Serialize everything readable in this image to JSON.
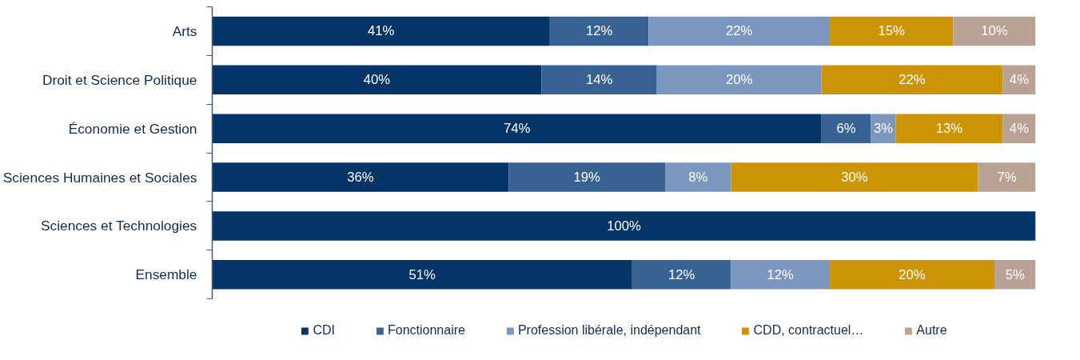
{
  "chart_data": {
    "type": "bar",
    "orientation": "horizontal",
    "stacked": true,
    "categories": [
      "Arts",
      "Droit et Science Politique",
      "Économie et Gestion",
      "Sciences Humaines et Sociales",
      "Sciences et Technologies",
      "Ensemble"
    ],
    "xlim": [
      0,
      100
    ],
    "tick_labels": "y",
    "grid": false,
    "legend": "bottom",
    "series": [
      {
        "name": "CDI",
        "color": "#043468",
        "values": [
          41,
          40,
          74,
          36,
          100,
          51
        ],
        "value_labels": [
          "41%",
          "40%",
          "74%",
          "36%",
          "100%",
          "51%"
        ]
      },
      {
        "name": "Fonctionnaire",
        "color": "#386294",
        "values": [
          12,
          14,
          6,
          19,
          null,
          12
        ],
        "value_labels": [
          "12%",
          "14%",
          "6%",
          "19%",
          null,
          "12%"
        ]
      },
      {
        "name": "Profession libérale, indépendant",
        "color": "#7b97c0",
        "values": [
          22,
          20,
          3,
          8,
          null,
          12
        ],
        "value_labels": [
          "22%",
          "20%",
          "3%",
          "8%",
          null,
          "12%"
        ]
      },
      {
        "name": "CDD, contractuel…",
        "color": "#cc9406",
        "values": [
          15,
          22,
          13,
          30,
          null,
          20
        ],
        "value_labels": [
          "15%",
          "22%",
          "13%",
          "30%",
          null,
          "20%"
        ]
      },
      {
        "name": "Autre",
        "color": "#b9a294",
        "values": [
          10,
          4,
          4,
          7,
          null,
          5
        ],
        "value_labels": [
          "10%",
          "4%",
          "4%",
          "7%",
          null,
          "5%"
        ]
      }
    ]
  }
}
